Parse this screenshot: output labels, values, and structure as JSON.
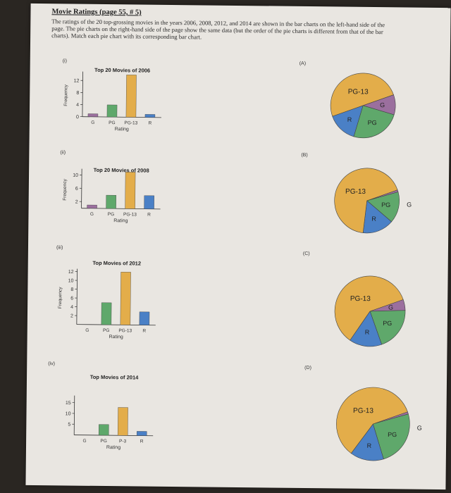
{
  "heading": "Movie Ratings (page 55, # 5)",
  "intro": "The ratings of the 20 top-grossing movies in the years 2006, 2008, 2012, and 2014 are shown in the bar charts on the left-hand side of the page. The pie charts on the right-hand side of the page show the same data (but the order of the pie charts is different from that of the bar charts). Match each pie chart with its corresponding bar chart.",
  "bar_tags": [
    "(i)",
    "(ii)",
    "(iii)",
    "(iv)"
  ],
  "pie_tags": [
    "(A)",
    "(B)",
    "(C)",
    "(D)"
  ],
  "colors": {
    "G": "#9b6f9e",
    "PG": "#5fa86b",
    "PG-13": "#e3ad4a",
    "R": "#4a80c6"
  },
  "chart_data": [
    {
      "type": "bar",
      "title": "Top 20 Movies of 2006",
      "xlabel": "Rating",
      "ylabel": "Frequency",
      "categories": [
        "G",
        "PG",
        "PG-13",
        "R"
      ],
      "tick_labels": [
        "G",
        "PG",
        "PG-13",
        "R"
      ],
      "values": [
        1,
        4,
        14,
        1
      ],
      "yticks": [
        0,
        4,
        8,
        12
      ],
      "ylim": [
        0,
        14
      ]
    },
    {
      "type": "bar",
      "title": "Top 20 Movies of 2008",
      "xlabel": "Rating",
      "ylabel": "Frequency",
      "categories": [
        "G",
        "PG",
        "PG-13",
        "R"
      ],
      "tick_labels": [
        "G",
        "PG",
        "PG-13",
        "R"
      ],
      "values": [
        1,
        4,
        11,
        4
      ],
      "yticks": [
        2,
        6,
        10
      ],
      "ylim": [
        0,
        11
      ]
    },
    {
      "type": "bar",
      "title": "Top Movies of 2012",
      "xlabel": "Rating",
      "ylabel": "Frequency",
      "categories": [
        "G",
        "PG",
        "PG-13",
        "R"
      ],
      "tick_labels": [
        "G",
        "PG",
        "PG-13",
        "R"
      ],
      "values": [
        0,
        5,
        12,
        3
      ],
      "yticks": [
        2,
        4,
        6,
        8,
        10,
        12
      ],
      "ylim": [
        0,
        12
      ]
    },
    {
      "type": "bar",
      "title": "Top Movies of 2014",
      "xlabel": "Rating",
      "ylabel": "",
      "categories": [
        "G",
        "PG",
        "PG-13",
        "R"
      ],
      "tick_labels": [
        "G",
        "PG",
        "P-3",
        "R"
      ],
      "values": [
        0,
        5,
        13,
        2
      ],
      "yticks": [
        5,
        10,
        15
      ],
      "ylim": [
        0,
        17
      ]
    },
    {
      "type": "pie",
      "categories": [
        "G",
        "PG",
        "PG-13",
        "R"
      ],
      "values": [
        2,
        5,
        10,
        3
      ],
      "slice_labels": [
        "G",
        "PG",
        "PG-13",
        "R"
      ]
    },
    {
      "type": "pie",
      "categories": [
        "G",
        "PG",
        "PG-13",
        "R"
      ],
      "values": [
        0.2,
        3,
        13,
        3
      ],
      "slice_labels": [
        "G",
        "PG",
        "PG-13",
        "R"
      ]
    },
    {
      "type": "pie",
      "categories": [
        "G",
        "PG",
        "PG-13",
        "R"
      ],
      "values": [
        1,
        4,
        12,
        3
      ],
      "slice_labels": [
        "G",
        "PG",
        "PG-13",
        "R"
      ]
    },
    {
      "type": "pie",
      "categories": [
        "G",
        "PG",
        "PG-13",
        "R"
      ],
      "values": [
        0.2,
        5,
        12,
        3
      ],
      "slice_labels": [
        "G",
        "PG",
        "PG-13",
        "R"
      ]
    }
  ]
}
